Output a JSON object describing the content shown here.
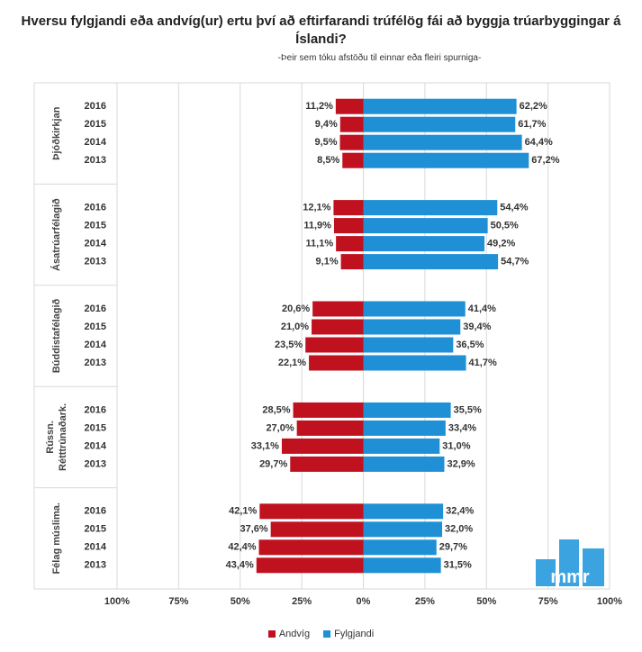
{
  "title": "Hversu fylgjandi eða andvíg(ur) ertu því að eftirfarandi trúfélög fái að byggja trúarbyggingar á Íslandi?",
  "subtitle": "-Þeir sem tóku afstöðu til einnar eða fleiri spurniga-",
  "colors": {
    "andvig": "#c0111f",
    "fylgjandi": "#1f8fd6",
    "logo": "#3aa3e0"
  },
  "legend": {
    "andvig": "Andvíg",
    "fylgjandi": "Fylgjandi"
  },
  "logo": {
    "text": "mmr"
  },
  "chart_data": {
    "type": "bar",
    "orientation": "horizontal-diverging",
    "xlim": [
      -100,
      100
    ],
    "x_tick_labels": [
      "100%",
      "75%",
      "50%",
      "25%",
      "0%",
      "25%",
      "50%",
      "75%",
      "100%"
    ],
    "grid": true,
    "legend_position": "bottom",
    "groups": [
      {
        "name": "Þjóðkirkjan",
        "lines": [
          "Þjóðkirkjan"
        ],
        "years": [
          "2016",
          "2015",
          "2014",
          "2013"
        ],
        "andvig": [
          11.2,
          9.4,
          9.5,
          8.5
        ],
        "fylgjandi": [
          62.2,
          61.7,
          64.4,
          67.2
        ],
        "andvig_labels": [
          "11,2%",
          "9,4%",
          "9,5%",
          "8,5%"
        ],
        "fylgjandi_labels": [
          "62,2%",
          "61,7%",
          "64,4%",
          "67,2%"
        ]
      },
      {
        "name": "Ásatrúarfélagið",
        "lines": [
          "Ásatrúarfélagið"
        ],
        "years": [
          "2016",
          "2015",
          "2014",
          "2013"
        ],
        "andvig": [
          12.1,
          11.9,
          11.1,
          9.1
        ],
        "fylgjandi": [
          54.4,
          50.5,
          49.2,
          54.7
        ],
        "andvig_labels": [
          "12,1%",
          "11,9%",
          "11,1%",
          "9,1%"
        ],
        "fylgjandi_labels": [
          "54,4%",
          "50,5%",
          "49,2%",
          "54,7%"
        ]
      },
      {
        "name": "Búddistafélagið",
        "lines": [
          "Búddistafélagið"
        ],
        "years": [
          "2016",
          "2015",
          "2014",
          "2013"
        ],
        "andvig": [
          20.6,
          21.0,
          23.5,
          22.1
        ],
        "fylgjandi": [
          41.4,
          39.4,
          36.5,
          41.7
        ],
        "andvig_labels": [
          "20,6%",
          "21,0%",
          "23,5%",
          "22,1%"
        ],
        "fylgjandi_labels": [
          "41,4%",
          "39,4%",
          "36,5%",
          "41,7%"
        ]
      },
      {
        "name": "Rússn. Rétttrúnaðark.",
        "lines": [
          "Rússn.",
          "Rétttrúnaðark."
        ],
        "years": [
          "2016",
          "2015",
          "2014",
          "2013"
        ],
        "andvig": [
          28.5,
          27.0,
          33.1,
          29.7
        ],
        "fylgjandi": [
          35.5,
          33.4,
          31.0,
          32.9
        ],
        "andvig_labels": [
          "28,5%",
          "27,0%",
          "33,1%",
          "29,7%"
        ],
        "fylgjandi_labels": [
          "35,5%",
          "33,4%",
          "31,0%",
          "32,9%"
        ]
      },
      {
        "name": "Félag múslima.",
        "lines": [
          "Félag múslima."
        ],
        "years": [
          "2016",
          "2015",
          "2014",
          "2013"
        ],
        "andvig": [
          42.1,
          37.6,
          42.4,
          43.4
        ],
        "fylgjandi": [
          32.4,
          32.0,
          29.7,
          31.5
        ],
        "andvig_labels": [
          "42,1%",
          "37,6%",
          "42,4%",
          "43,4%"
        ],
        "fylgjandi_labels": [
          "32,4%",
          "32,0%",
          "29,7%",
          "31,5%"
        ]
      }
    ]
  }
}
